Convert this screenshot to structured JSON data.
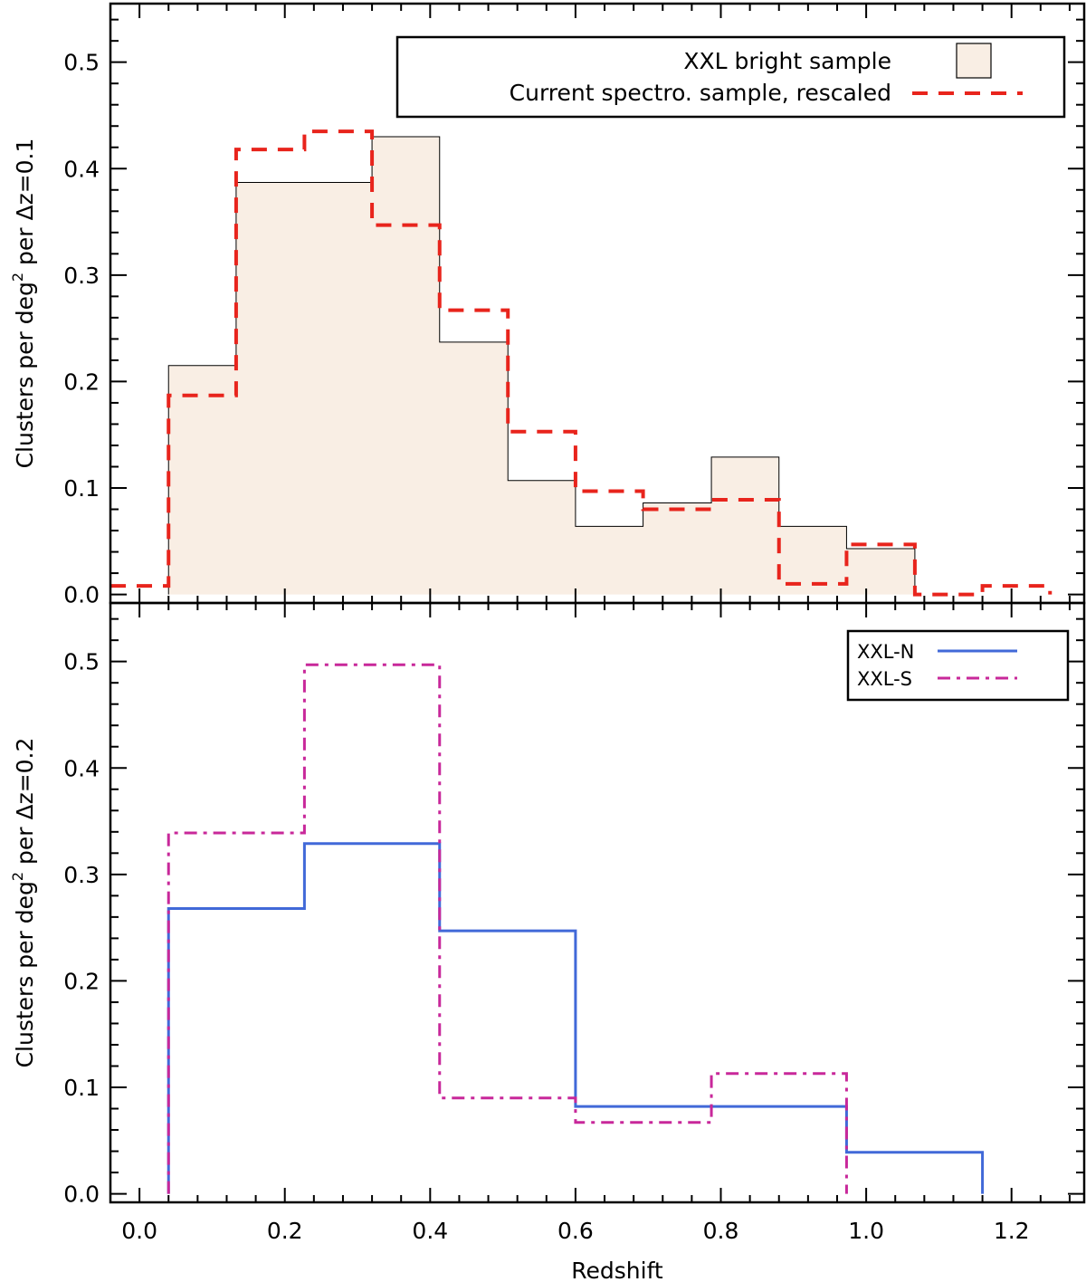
{
  "chart_data": [
    {
      "id": "top",
      "type": "histogram",
      "xlim": [
        -0.04,
        1.3
      ],
      "ylim": [
        -0.008,
        0.555
      ],
      "xticks": [
        0.0,
        0.2,
        0.4,
        0.6,
        0.8,
        1.0,
        1.2
      ],
      "yticks": [
        0.0,
        0.1,
        0.2,
        0.3,
        0.4,
        0.5
      ],
      "ytick_labels": [
        "0.0",
        "0.1",
        "0.2",
        "0.3",
        "0.4",
        "0.5"
      ],
      "xlabel": "",
      "ylabel_prefix": "Clusters per deg",
      "ylabel_sup": "2",
      "ylabel_suffix": " per Δz=0.1",
      "legend": {
        "position": "top-right",
        "entries": [
          {
            "label": "XXL bright sample",
            "style": "filled-box"
          },
          {
            "label": "Current spectro. sample, rescaled",
            "style": "red-dashed"
          }
        ]
      },
      "series": [
        {
          "name": "XXL bright sample",
          "style": "filled",
          "fill_color": "#f9eee4",
          "line_color": "#000000",
          "edges": [
            0.04,
            0.133,
            0.227,
            0.32,
            0.413,
            0.507,
            0.6,
            0.693,
            0.787,
            0.88,
            0.973,
            1.067
          ],
          "values": [
            0.215,
            0.387,
            0.387,
            0.43,
            0.237,
            0.107,
            0.064,
            0.086,
            0.129,
            0.064,
            0.043
          ]
        },
        {
          "name": "Current spectro. sample, rescaled",
          "style": "dashed",
          "line_color": "#e8241c",
          "edges": [
            -0.04,
            0.04,
            0.133,
            0.227,
            0.32,
            0.413,
            0.507,
            0.6,
            0.693,
            0.787,
            0.88,
            0.973,
            1.067,
            1.16,
            1.253
          ],
          "values": [
            0.008,
            0.187,
            0.418,
            0.435,
            0.347,
            0.267,
            0.153,
            0.097,
            0.08,
            0.089,
            0.01,
            0.047,
            0.0,
            0.008
          ],
          "start_y": 0.008,
          "end_y": 0.0
        }
      ]
    },
    {
      "id": "bottom",
      "type": "histogram",
      "xlim": [
        -0.04,
        1.3
      ],
      "ylim": [
        -0.008,
        0.555
      ],
      "xticks": [
        0.0,
        0.2,
        0.4,
        0.6,
        0.8,
        1.0,
        1.2
      ],
      "xtick_labels": [
        "0.0",
        "0.2",
        "0.4",
        "0.6",
        "0.8",
        "1.0",
        "1.2"
      ],
      "yticks": [
        0.0,
        0.1,
        0.2,
        0.3,
        0.4,
        0.5
      ],
      "ytick_labels": [
        "0.0",
        "0.1",
        "0.2",
        "0.3",
        "0.4",
        "0.5"
      ],
      "xlabel": "Redshift",
      "ylabel_prefix": "Clusters per deg",
      "ylabel_sup": "2",
      "ylabel_suffix": " per Δz=0.2",
      "legend": {
        "position": "top-right",
        "entries": [
          {
            "label": "XXL-N",
            "style": "blue-solid"
          },
          {
            "label": "XXL-S",
            "style": "magenta-dashdot"
          }
        ]
      },
      "series": [
        {
          "name": "XXL-N",
          "style": "solid",
          "line_color": "#4169d8",
          "edges": [
            0.04,
            0.227,
            0.413,
            0.6,
            0.787,
            0.973,
            1.16
          ],
          "values": [
            0.268,
            0.329,
            0.247,
            0.082,
            0.082,
            0.039
          ],
          "start_y": 0.0,
          "end_y": 0.0
        },
        {
          "name": "XXL-S",
          "style": "dashdot",
          "line_color": "#c8289a",
          "edges": [
            0.04,
            0.227,
            0.413,
            0.6,
            0.787,
            0.973
          ],
          "values": [
            0.339,
            0.497,
            0.09,
            0.067,
            0.113
          ],
          "start_y": 0.0,
          "end_y": 0.0
        }
      ]
    }
  ]
}
